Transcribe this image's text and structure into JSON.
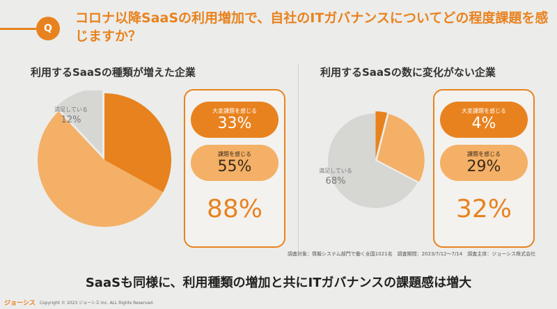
{
  "question": {
    "badge": "Q",
    "text": "コロナ以降SaaSの利用増加で、自社のITガバナンスについてどの程度課題を感じますか？"
  },
  "panels": [
    {
      "title": "利用するSaaSの種類が増えた企業",
      "pie_label": "満足している",
      "pie_value": "12%",
      "big_label": "大変課題を感じる",
      "big_value": "33%",
      "mid_label": "課題を感じる",
      "mid_value": "55%",
      "total": "88%"
    },
    {
      "title": "利用するSaaSの数に変化がない企業",
      "pie_label": "満足している",
      "pie_value": "68%",
      "big_label": "大変課題を感じる",
      "big_value": "4%",
      "mid_label": "課題を感じる",
      "mid_value": "29%",
      "total": "32%"
    }
  ],
  "chart_data": [
    {
      "type": "pie",
      "title": "利用するSaaSの種類が増えた企業",
      "categories": [
        "大変課題を感じる",
        "課題を感じる",
        "満足している"
      ],
      "values": [
        33,
        55,
        12
      ],
      "unit": "%"
    },
    {
      "type": "pie",
      "title": "利用するSaaSの数に変化がない企業",
      "categories": [
        "大変課題を感じる",
        "課題を感じる",
        "満足している"
      ],
      "values": [
        4,
        29,
        68
      ],
      "unit": "%"
    }
  ],
  "colors": {
    "accent": "#e8821e",
    "light": "#f4b066",
    "gray": "#d6d6d3"
  },
  "source": "調査対象：情報システム部門で働く全国1021名　調査期間：2023/7/12〜7/14　調査主体：ジョーシス株式会社",
  "conclusion": "SaaSも同様に、利用種類の増加と共にITガバナンスの課題感は増大",
  "footer": {
    "logo": "ジョーシス",
    "copyright": "Copyright © 2023 ジョーシス Inc. ALL Rights Reserved."
  }
}
